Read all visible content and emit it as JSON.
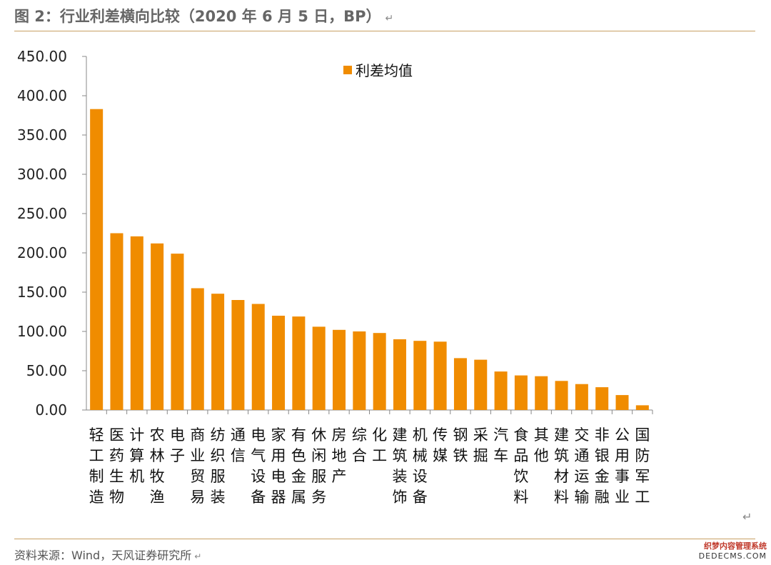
{
  "header": {
    "title": "图 2：行业利差横向比较（2020 年 6 月 5 日，BP）",
    "return_mark": "↵"
  },
  "footer": {
    "source": "资料来源：Wind，天风证券研究所",
    "return_mark": "↵"
  },
  "side_return_mark": "↵",
  "watermark": {
    "line1": "织梦内容管理系统",
    "line2": "DEDECMS.COM"
  },
  "colors": {
    "bar": "#F08C00",
    "rule": "#C8A063",
    "axis": "#888888"
  },
  "chart_data": {
    "type": "bar",
    "title": "",
    "xlabel": "",
    "ylabel": "",
    "ylim": [
      0,
      450
    ],
    "yticks": [
      "0.00",
      "50.00",
      "100.00",
      "150.00",
      "200.00",
      "250.00",
      "300.00",
      "350.00",
      "400.00",
      "450.00"
    ],
    "legend_position": "top-center",
    "categories": [
      "轻工制造",
      "医药生物",
      "计算机",
      "农林牧渔",
      "电子",
      "商业贸易",
      "纺织服装",
      "通信",
      "电气设备",
      "家用电器",
      "有色金属",
      "休闲服务",
      "房地产",
      "综合",
      "化工",
      "建筑装饰",
      "机械设备",
      "传媒",
      "钢铁",
      "采掘",
      "汽车",
      "食品饮料",
      "其他",
      "建筑材料",
      "交通运输",
      "非银金融",
      "公用事业",
      "国防军工"
    ],
    "series": [
      {
        "name": "利差均值",
        "values": [
          383,
          225,
          221,
          212,
          199,
          155,
          148,
          140,
          135,
          120,
          119,
          106,
          102,
          100,
          98,
          90,
          88,
          87,
          66,
          64,
          49,
          44,
          43,
          37,
          33,
          29,
          19,
          6
        ]
      }
    ]
  }
}
